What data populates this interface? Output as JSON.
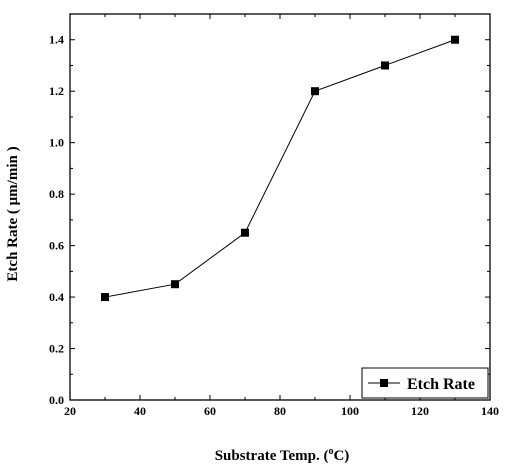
{
  "chart_data": {
    "type": "line",
    "x": [
      30,
      50,
      70,
      90,
      110,
      130
    ],
    "series": [
      {
        "name": "Etch Rate",
        "values": [
          0.4,
          0.45,
          0.65,
          1.2,
          1.3,
          1.4
        ]
      }
    ],
    "xlabel_main": "Substrate Temp. (",
    "xlabel_sup": "o",
    "xlabel_end": "C)",
    "ylabel": "Etch Rate ( μm/min )",
    "xlim": [
      20,
      140
    ],
    "ylim": [
      0.0,
      1.5
    ],
    "xticks": [
      20,
      40,
      60,
      80,
      100,
      120,
      140
    ],
    "xtick_labels": [
      "20",
      "40",
      "60",
      "80",
      "100",
      "120",
      "140"
    ],
    "yticks": [
      0.0,
      0.2,
      0.4,
      0.6,
      0.8,
      1.0,
      1.2,
      1.4
    ],
    "ytick_labels": [
      "0.0",
      "0.2",
      "0.4",
      "0.6",
      "0.8",
      "1.0",
      "1.2",
      "1.4"
    ],
    "legend_position": "bottom-right",
    "marker": "square",
    "grid": false,
    "line_color": "#000000"
  }
}
